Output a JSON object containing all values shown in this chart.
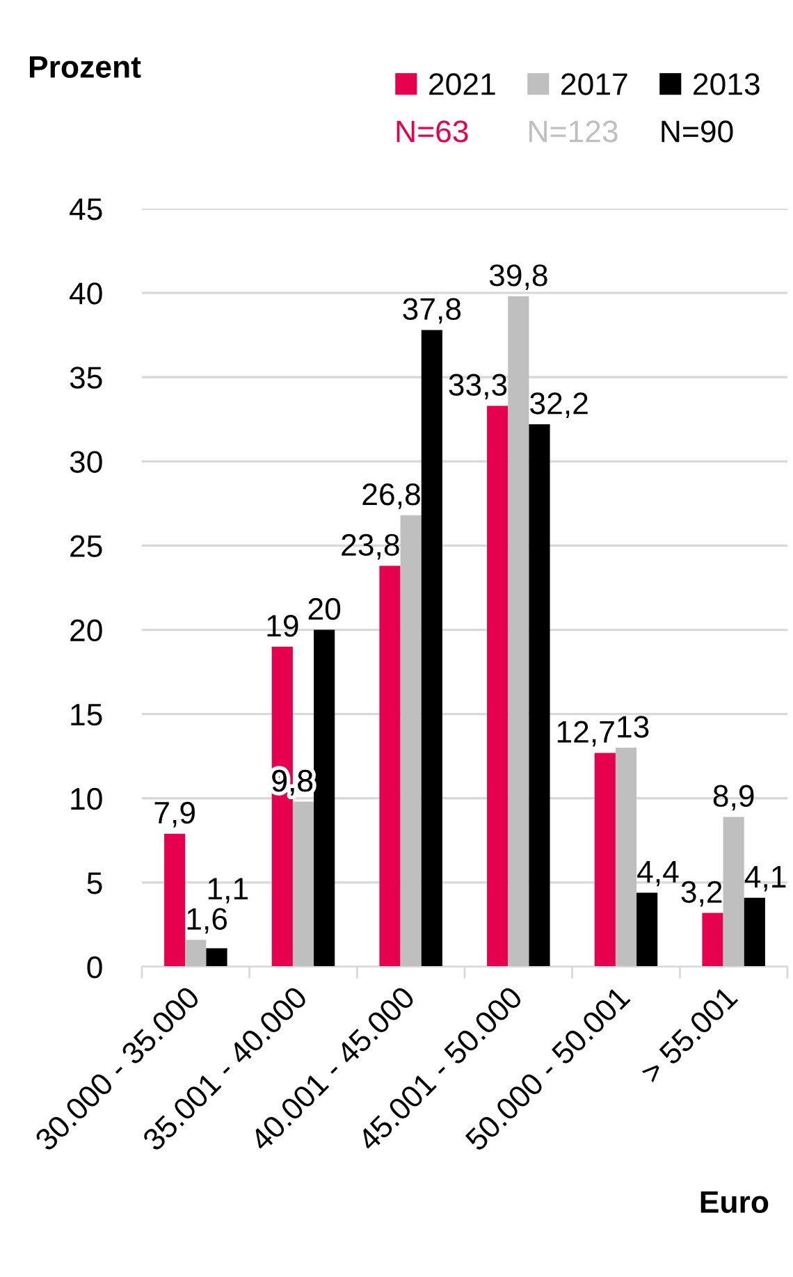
{
  "chart_data": {
    "type": "bar",
    "ylabel": "Prozent",
    "xlabel": "Euro",
    "categories": [
      "30.000 - 35.000",
      "35.001 - 40.000",
      "40.001 - 45.000",
      "45.001 - 50.000",
      "50.000 - 50.001",
      "> 55.001"
    ],
    "series": [
      {
        "name": "2021",
        "color": "#e6004e",
        "values": [
          7.9,
          19,
          23.8,
          33.3,
          12.7,
          3.2
        ],
        "value_labels": [
          "7,9",
          "19",
          "23,8",
          "33,3",
          "12,7",
          "3,2"
        ]
      },
      {
        "name": "2017",
        "color": "#bfbfbf",
        "values": [
          1.6,
          9.8,
          26.8,
          39.8,
          13,
          8.9
        ],
        "value_labels": [
          "1,6",
          "9,8",
          "26,8",
          "39,8",
          "13",
          "8,9"
        ]
      },
      {
        "name": "2013",
        "color": "#000000",
        "values": [
          1.1,
          20,
          37.8,
          32.2,
          4.4,
          4.1
        ],
        "value_labels": [
          "1,1",
          "20",
          "37,8",
          "32,2",
          "4,4",
          "4,1"
        ]
      }
    ],
    "annotations": [
      "N=63",
      "N=123",
      "N=90"
    ],
    "ylim": [
      0,
      45
    ],
    "yticks": [
      0,
      5,
      10,
      15,
      20,
      25,
      30,
      35,
      40,
      45
    ],
    "grid": "y",
    "legend": "top right"
  }
}
